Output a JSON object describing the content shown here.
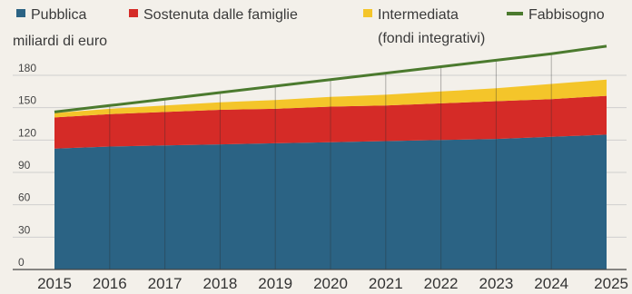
{
  "chart_data": {
    "type": "area",
    "ylabel": "miliardi di euro",
    "x": [
      "2015",
      "2016",
      "2017",
      "2018",
      "2019",
      "2020",
      "2021",
      "2022",
      "2023",
      "2024",
      "2025"
    ],
    "yticks": [
      0,
      30,
      60,
      90,
      120,
      150,
      180
    ],
    "ylim": [
      0,
      210
    ],
    "grid": true,
    "legend_placement": "top",
    "series": [
      {
        "name": "Pubblica",
        "color": "#2b6384",
        "kind": "area",
        "values": [
          112,
          114,
          115,
          116,
          117,
          118,
          119,
          120,
          121,
          123,
          125
        ]
      },
      {
        "name": "Sostenuta dalle famiglie",
        "color": "#d52b27",
        "kind": "area",
        "values": [
          29,
          30,
          31,
          32,
          32,
          33,
          33,
          34,
          35,
          35,
          36
        ]
      },
      {
        "name": "Intermediata",
        "name_line2": "(fondi integrativi)",
        "color": "#f4c52a",
        "kind": "area",
        "values": [
          4,
          5,
          6,
          7,
          8,
          9,
          10,
          11,
          12,
          14,
          15
        ]
      },
      {
        "name": "Fabbisogno",
        "color": "#4b7a2e",
        "kind": "line",
        "values": [
          146,
          152,
          158,
          164,
          170,
          176,
          182,
          188,
          194,
          200,
          207
        ]
      }
    ]
  }
}
